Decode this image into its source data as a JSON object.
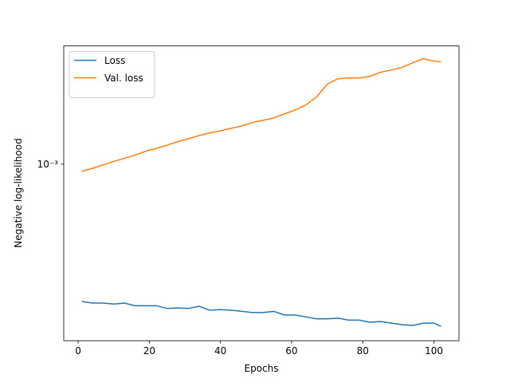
{
  "chart_data": {
    "type": "line",
    "xlabel": "Epochs",
    "ylabel": "Negative log-likelihood",
    "x": [
      1,
      4,
      7,
      10,
      13,
      16,
      19,
      22,
      25,
      28,
      31,
      34,
      37,
      40,
      43,
      46,
      49,
      52,
      55,
      58,
      61,
      64,
      67,
      70,
      73,
      76,
      79,
      82,
      85,
      88,
      91,
      94,
      97,
      100,
      102
    ],
    "series": [
      {
        "name": "Loss",
        "color": "#1f77b4",
        "values": [
          0.000134,
          0.000131,
          0.000131,
          0.000129,
          0.000131,
          0.000126,
          0.000126,
          0.000126,
          0.000121,
          0.000122,
          0.000121,
          0.000125,
          0.000118,
          0.000119,
          0.000118,
          0.000116,
          0.000114,
          0.000114,
          0.000116,
          0.00011,
          0.00011,
          0.000107,
          0.000104,
          0.000104,
          0.000105,
          0.000102,
          0.000102,
          9.88e-05,
          0.0001,
          9.77e-05,
          9.54e-05,
          9.43e-05,
          9.77e-05,
          9.77e-05,
          9.32e-05
        ]
      },
      {
        "name": "Val. loss",
        "color": "#ff7f0e",
        "values": [
          0.0009,
          0.00094,
          0.00099,
          0.00104,
          0.00109,
          0.00114,
          0.00121,
          0.00126,
          0.00132,
          0.00139,
          0.00145,
          0.00152,
          0.00158,
          0.00163,
          0.00169,
          0.00175,
          0.00184,
          0.0019,
          0.00197,
          0.00209,
          0.00221,
          0.00238,
          0.00267,
          0.00322,
          0.00349,
          0.00353,
          0.00353,
          0.00362,
          0.00384,
          0.00397,
          0.00411,
          0.00441,
          0.00468,
          0.00452,
          0.00447
        ]
      }
    ],
    "xlim": [
      -4.05,
      107.05
    ],
    "xticks": [
      0,
      20,
      40,
      60,
      80,
      100
    ],
    "ylim": [
      7.55e-05,
      0.00564
    ],
    "yticks": [
      {
        "value": 0.001,
        "label": "10⁻³"
      }
    ],
    "log_y": true,
    "legend": "upper left"
  }
}
